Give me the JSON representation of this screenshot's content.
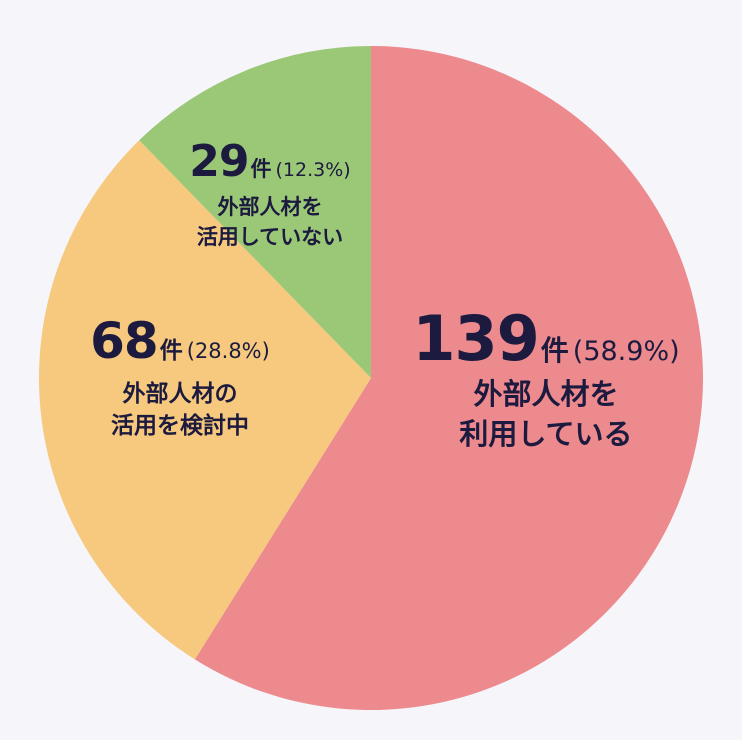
{
  "chart_data": {
    "type": "pie",
    "slices": [
      {
        "count": "139",
        "unit": "件",
        "percent": "(58.9%)",
        "value": 58.9,
        "label_lines": [
          "外部人材を",
          "利用している"
        ],
        "color": "#ec8a8e"
      },
      {
        "count": "68",
        "unit": "件",
        "percent": "(28.8%)",
        "value": 28.8,
        "label_lines": [
          "外部人材の",
          "活用を検討中"
        ],
        "color": "#f6c97e"
      },
      {
        "count": "29",
        "unit": "件",
        "percent": "(12.3%)",
        "value": 12.3,
        "label_lines": [
          "外部人材を",
          "活用していない"
        ],
        "color": "#9bc877"
      }
    ],
    "start_angle": "12 o'clock",
    "direction": "clockwise"
  },
  "colors": {
    "background": "#f6f5f9",
    "text": "#1c1a3e"
  }
}
